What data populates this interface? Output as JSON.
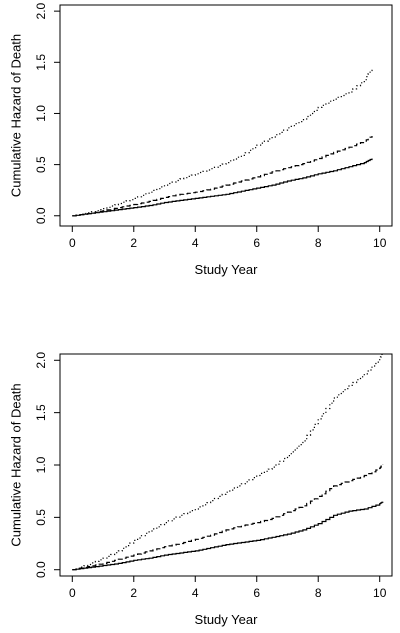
{
  "chart_data": [
    {
      "type": "line",
      "title": "",
      "xlabel": "Study Year",
      "ylabel": "Cumulative Hazard of Death",
      "xlim": [
        -0.4,
        10.4
      ],
      "ylim": [
        -0.1,
        2.06
      ],
      "xticks": [
        0,
        2,
        4,
        6,
        8,
        10
      ],
      "yticks": [
        0.0,
        0.5,
        1.0,
        1.5,
        2.0
      ],
      "xtick_labels": [
        "0",
        "2",
        "4",
        "6",
        "8",
        "10"
      ],
      "ytick_labels": [
        "0.0",
        "0.5",
        "1.0",
        "1.5",
        "2.0"
      ],
      "grid": false,
      "series": [
        {
          "style": "solid",
          "x": [
            0,
            0.5,
            1,
            1.5,
            2,
            2.5,
            3,
            3.5,
            4,
            4.5,
            5,
            5.5,
            6,
            6.5,
            7,
            7.5,
            8,
            8.5,
            9,
            9.5,
            9.75
          ],
          "y": [
            0.0,
            0.02,
            0.04,
            0.06,
            0.08,
            0.1,
            0.13,
            0.15,
            0.17,
            0.19,
            0.21,
            0.24,
            0.27,
            0.3,
            0.34,
            0.37,
            0.41,
            0.44,
            0.48,
            0.52,
            0.56
          ]
        },
        {
          "style": "dashed",
          "x": [
            0,
            0.5,
            1,
            1.5,
            2,
            2.5,
            3,
            3.5,
            4,
            4.5,
            5,
            5.5,
            6,
            6.5,
            7,
            7.5,
            8,
            8.5,
            9,
            9.5,
            9.75
          ],
          "y": [
            0.0,
            0.02,
            0.05,
            0.08,
            0.11,
            0.14,
            0.18,
            0.21,
            0.23,
            0.26,
            0.3,
            0.34,
            0.38,
            0.43,
            0.47,
            0.51,
            0.56,
            0.62,
            0.67,
            0.73,
            0.78
          ]
        },
        {
          "style": "dotted",
          "x": [
            0,
            0.5,
            1,
            1.5,
            2,
            2.5,
            3,
            3.5,
            4,
            4.5,
            5,
            5.5,
            6,
            6.5,
            7,
            7.5,
            8,
            8.5,
            9,
            9.5,
            9.75
          ],
          "y": [
            0.0,
            0.03,
            0.07,
            0.12,
            0.17,
            0.23,
            0.3,
            0.36,
            0.41,
            0.46,
            0.52,
            0.59,
            0.69,
            0.77,
            0.86,
            0.94,
            1.06,
            1.14,
            1.21,
            1.33,
            1.45
          ]
        }
      ]
    },
    {
      "type": "line",
      "title": "",
      "xlabel": "Study Year",
      "ylabel": "Cumulative Hazard of Death",
      "xlim": [
        -0.4,
        10.4
      ],
      "ylim": [
        -0.06,
        2.06
      ],
      "xticks": [
        0,
        2,
        4,
        6,
        8,
        10
      ],
      "yticks": [
        0.0,
        0.5,
        1.0,
        1.5,
        2.0
      ],
      "xtick_labels": [
        "0",
        "2",
        "4",
        "6",
        "8",
        "10"
      ],
      "ytick_labels": [
        "0.0",
        "0.5",
        "1.0",
        "1.5",
        "2.0"
      ],
      "grid": false,
      "series": [
        {
          "style": "solid",
          "x": [
            0,
            0.5,
            1,
            1.5,
            2,
            2.5,
            3,
            3.5,
            4,
            4.5,
            5,
            5.5,
            6,
            6.5,
            7,
            7.5,
            8,
            8.5,
            9,
            9.5,
            10,
            10.1
          ],
          "y": [
            0.0,
            0.02,
            0.04,
            0.06,
            0.09,
            0.11,
            0.14,
            0.16,
            0.18,
            0.21,
            0.24,
            0.26,
            0.28,
            0.31,
            0.34,
            0.38,
            0.44,
            0.52,
            0.56,
            0.58,
            0.63,
            0.65
          ]
        },
        {
          "style": "dashed",
          "x": [
            0,
            0.5,
            1,
            1.5,
            2,
            2.5,
            3,
            3.5,
            4,
            4.5,
            5,
            5.5,
            6,
            6.5,
            7,
            7.5,
            8,
            8.5,
            9,
            9.5,
            10,
            10.1
          ],
          "y": [
            0.0,
            0.03,
            0.06,
            0.1,
            0.14,
            0.18,
            0.22,
            0.25,
            0.29,
            0.33,
            0.38,
            0.42,
            0.45,
            0.49,
            0.55,
            0.61,
            0.7,
            0.8,
            0.85,
            0.9,
            0.97,
            1.01
          ]
        },
        {
          "style": "dotted",
          "x": [
            0,
            0.5,
            1,
            1.5,
            2,
            2.5,
            3,
            3.5,
            4,
            4.5,
            5,
            5.5,
            6,
            6.5,
            7,
            7.5,
            8,
            8.5,
            9,
            9.5,
            10,
            10.1
          ],
          "y": [
            0.0,
            0.05,
            0.11,
            0.18,
            0.28,
            0.37,
            0.45,
            0.52,
            0.58,
            0.66,
            0.74,
            0.82,
            0.9,
            0.98,
            1.09,
            1.23,
            1.44,
            1.64,
            1.76,
            1.87,
            2.02,
            2.07
          ]
        }
      ]
    }
  ]
}
